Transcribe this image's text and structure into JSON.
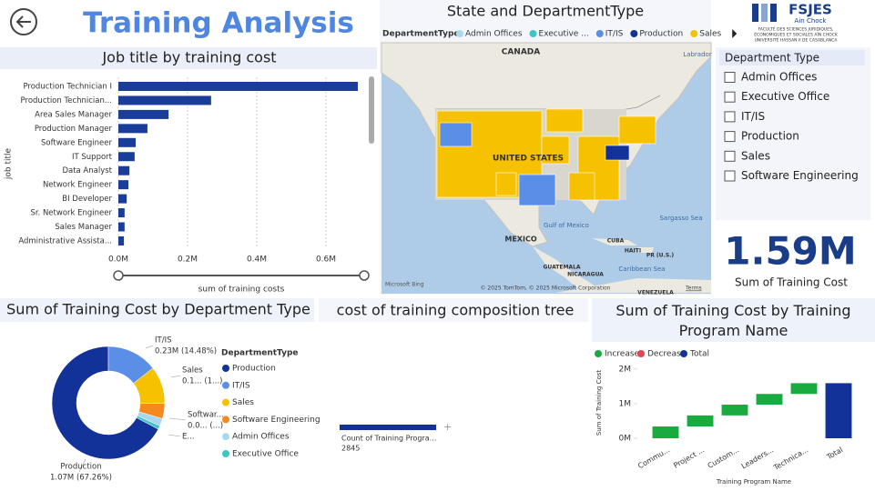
{
  "header": {
    "title": "Training Analysis"
  },
  "logo": {
    "name": "FSJES",
    "campus": "Ain Chock",
    "lines": [
      "FACULTÉ DES SCIENCES JURIDIQUES,",
      "ÉCONOMIQUES ET SOCIALES AÏN CHOCK",
      "UNIVERSITÉ HASSAN II DE CASABLANCA"
    ]
  },
  "chart_data": [
    {
      "type": "bar",
      "orientation": "horizontal",
      "title": "Job title by training cost",
      "x_label": "sum of training costs",
      "y_label": "job title",
      "categories": [
        "Production Technician I",
        "Production Technician...",
        "Area Sales Manager",
        "Production Manager",
        "Software Engineer",
        "IT Support",
        "Data Analyst",
        "Network Engineer",
        "BI Developer",
        "Sr. Network Engineer",
        "Sales Manager",
        "Administrative Assista..."
      ],
      "values": [
        692000,
        268000,
        145000,
        84000,
        50000,
        47000,
        32000,
        29000,
        24000,
        18000,
        18000,
        16000
      ],
      "color": "#1a3d9a",
      "xlim": [
        0,
        700000
      ],
      "xticks": [
        {
          "value": 0,
          "label": "0.0M"
        },
        {
          "value": 200000,
          "label": "0.2M"
        },
        {
          "value": 400000,
          "label": "0.4M"
        },
        {
          "value": 600000,
          "label": "0.6M"
        }
      ],
      "grid": true
    },
    {
      "type": "donut",
      "title": "Sum of Training Cost by Department Type",
      "legend_title": "DepartmentType",
      "categories": [
        "Production",
        "IT/IS",
        "Sales",
        "Software Engineering",
        "Admin Offices",
        "Executive Office"
      ],
      "values": [
        1070100,
        230400,
        170000,
        70000,
        34000,
        16500
      ],
      "value_labels": [
        "1.07M (67.26%)",
        "0.23M (14.48%)",
        "0.1... (1...)",
        "0.0... (...)",
        null,
        null
      ],
      "label_names": [
        "Production",
        "IT/IS",
        "Sales",
        "Softwar...",
        null,
        "E..."
      ],
      "colors": [
        "#12329a",
        "#5b8ee6",
        "#f5c100",
        "#f5891f",
        "#a8d8f0",
        "#41c4c4"
      ]
    },
    {
      "type": "waterfall",
      "title": "Sum of Training Cost by Training Program Name",
      "x_label": "Training Program Name",
      "y_label": "Sum of Training Cost",
      "categories": [
        "Commu...",
        "Project ...",
        "Custom...",
        "Leaders...",
        "Technica...",
        "Total"
      ],
      "values": [
        340000,
        320000,
        310000,
        310000,
        310000,
        1590000
      ],
      "legend": [
        {
          "name": "Increase",
          "color": "#1aab40"
        },
        {
          "name": "Decrease",
          "color": "#e3444f"
        },
        {
          "name": "Total",
          "color": "#12329a"
        }
      ],
      "ylim": [
        0,
        2100000
      ],
      "yticks": [
        {
          "value": 0,
          "label": "0M"
        },
        {
          "value": 1000000,
          "label": "1M"
        },
        {
          "value": 2000000,
          "label": "2M"
        }
      ]
    }
  ],
  "map": {
    "title": "State and DepartmentType",
    "legend_title": "DepartmentType",
    "legend": [
      {
        "name": "Admin Offices",
        "color": "#a8d8f0"
      },
      {
        "name": "Executive ...",
        "color": "#41c4c4"
      },
      {
        "name": "IT/IS",
        "color": "#5b8ee6"
      },
      {
        "name": "Production",
        "color": "#12329a"
      },
      {
        "name": "Sales",
        "color": "#f5c100"
      }
    ],
    "labels": [
      "CANADA",
      "UNITED STATES",
      "MEXICO",
      "Gulf of Mexico",
      "Labrador",
      "Sargasso Sea",
      "CUBA",
      "HAITI",
      "PR (U.S.)",
      "GUATEMALA",
      "NICARAGUA",
      "Caribbean Sea",
      "VENEZUELA"
    ],
    "attribution": "© 2025 TomTom, © 2025 Microsoft Corporation",
    "terms": "Terms",
    "brand": "Microsoft Bing"
  },
  "slicer": {
    "title": "Department Type",
    "items": [
      "Admin Offices",
      "Executive Office",
      "IT/IS",
      "Production",
      "Sales",
      "Software Engineering"
    ]
  },
  "card": {
    "value": "1.59M",
    "label": "Sum of Training Cost"
  },
  "tree": {
    "title": "cost of training composition tree",
    "node_label": "Count of Training Progra...",
    "node_value": "2845"
  }
}
